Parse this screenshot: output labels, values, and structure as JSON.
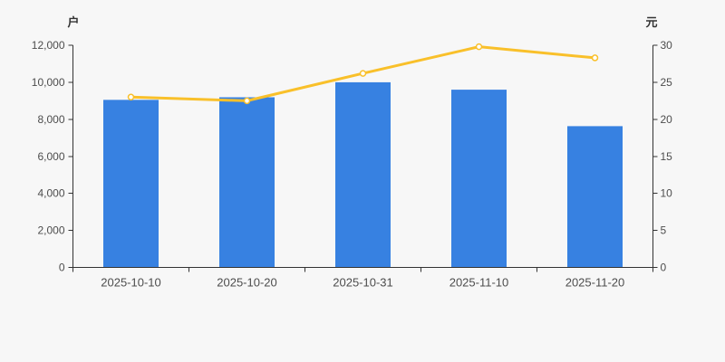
{
  "chart_data": {
    "type": "combo",
    "title": "",
    "legend": "none",
    "grid": false,
    "categories": [
      "2025-10-10",
      "2025-10-20",
      "2025-10-31",
      "2025-11-10",
      "2025-11-20"
    ],
    "series": [
      {
        "id": "bar-series",
        "type": "bar",
        "axis": "left",
        "color": "#3781e1",
        "values": [
          9050,
          9190,
          10000,
          9600,
          7630
        ]
      },
      {
        "id": "line-series",
        "type": "line",
        "axis": "right",
        "color": "#f9c02a",
        "marker": "open-circle",
        "values": [
          23.0,
          22.5,
          26.2,
          29.8,
          28.3
        ]
      }
    ],
    "left_axis": {
      "name": "户",
      "min": 0,
      "max": 12000,
      "interval": 2000,
      "tick_labels": [
        "0",
        "2,000",
        "4,000",
        "6,000",
        "8,000",
        "10,000",
        "12,000"
      ]
    },
    "right_axis": {
      "name": "元",
      "min": 0,
      "max": 30,
      "interval": 5,
      "tick_labels": [
        "0",
        "5",
        "10",
        "15",
        "20",
        "25",
        "30"
      ]
    }
  },
  "style": {
    "background": "#f7f7f7",
    "bar_color": "#3781e1",
    "line_color": "#f9c02a",
    "marker_fill": "#ffffff",
    "axis_line_color": "#333333",
    "tick_label_color": "#4d4d4d",
    "axis_name_color": "#333333"
  }
}
